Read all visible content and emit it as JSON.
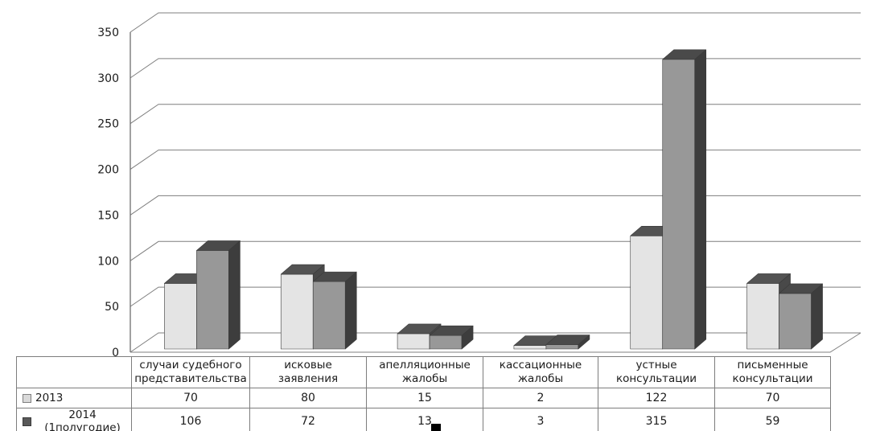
{
  "chart_data": {
    "type": "bar",
    "title": "",
    "xlabel": "",
    "ylabel": "",
    "categories": [
      "случаи судебного\nпредставительства",
      "исковые\nзаявления",
      "апелляционные\nжалобы",
      "кассационные\nжалобы",
      "устные\nконсультации",
      "письменные\nконсультации"
    ],
    "series": [
      {
        "name": "2013",
        "values": [
          70,
          80,
          15,
          2,
          122,
          70
        ],
        "front_color": "#e4e4e4",
        "top_color": "#535353",
        "side_color": "#494949",
        "marker_color": "#d9d9d9"
      },
      {
        "name": "2014 (1полугодие)",
        "values": [
          106,
          72,
          13,
          3,
          315,
          59
        ],
        "front_color": "#989898",
        "top_color": "#4a4a4a",
        "side_color": "#3d3d3d",
        "marker_color": "#595959"
      }
    ],
    "y_axis": {
      "min": 0,
      "max": 350,
      "step": 50,
      "tick_labels": [
        "0",
        "50",
        "100",
        "150",
        "200",
        "250",
        "300",
        "350"
      ]
    },
    "legend_position": "table-left",
    "grid": true,
    "style": "3d-clustered-grayscale",
    "grid_color": "#7f7f7f",
    "axis_color": "#6e6e6e",
    "text_color": "#1a1a1a"
  }
}
